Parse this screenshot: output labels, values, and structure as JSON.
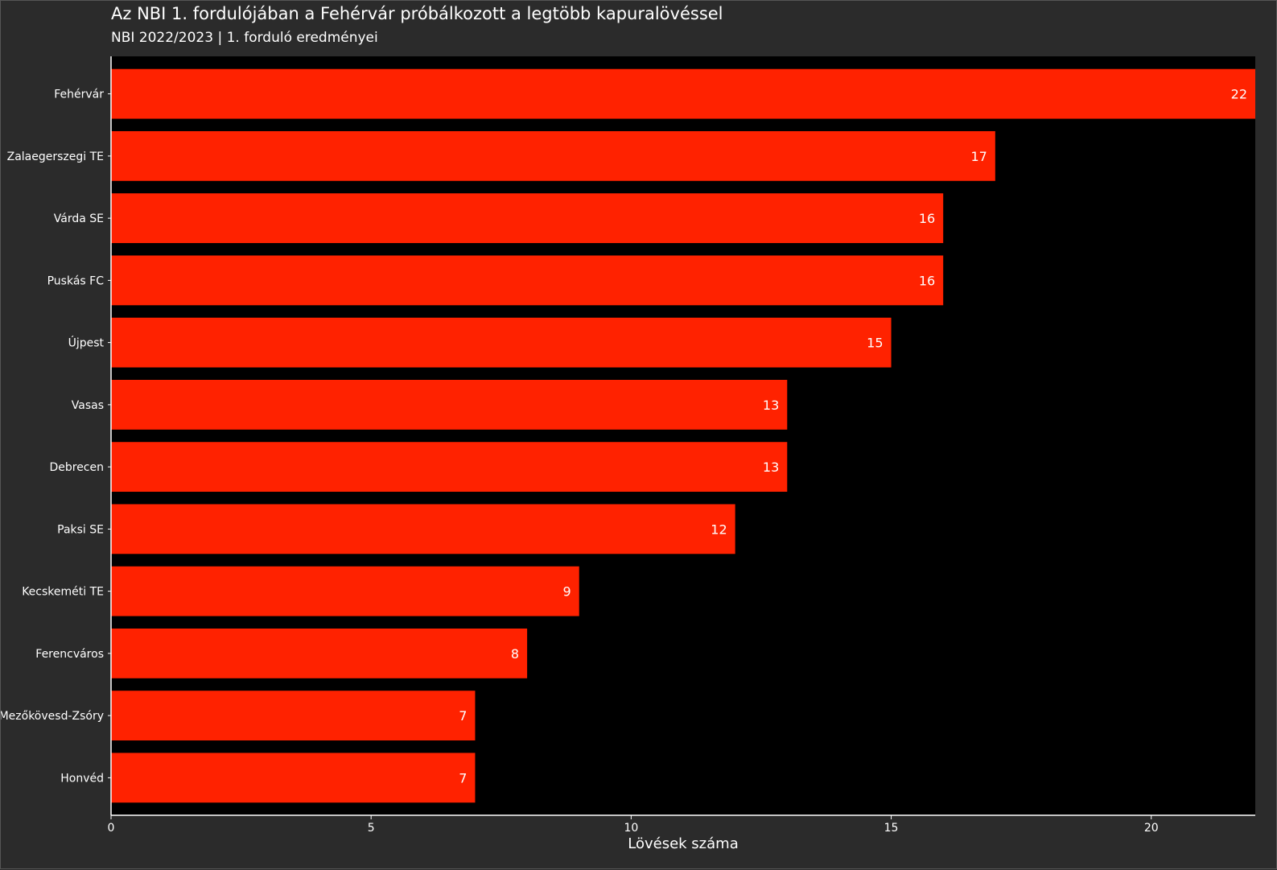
{
  "title": "Az NBI 1. fordulójában a Fehérvár próbálkozott a legtöbb kapuralövéssel",
  "subtitle": "NBI 2022/2023 | 1. forduló eredményei",
  "colors": {
    "bar": "#ff2200",
    "plot_background": "#000000",
    "page_background": "#2b2b2b",
    "text": "#ffffff"
  },
  "chart_data": {
    "type": "bar",
    "orientation": "horizontal",
    "title": "Az NBI 1. fordulójában a Fehérvár próbálkozott a legtöbb kapuralövéssel",
    "subtitle": "NBI 2022/2023 | 1. forduló eredményei",
    "xlabel": "Lövések száma",
    "ylabel": "",
    "categories": [
      "Fehérvár",
      "Zalaegerszegi TE",
      "Várda SE",
      "Puskás FC",
      "Újpest",
      "Vasas",
      "Debrecen",
      "Paksi SE",
      "Kecskeméti TE",
      "Ferencváros",
      "Mezőkövesd-Zsóry",
      "Honvéd"
    ],
    "values": [
      22,
      17,
      16,
      16,
      15,
      13,
      13,
      12,
      9,
      8,
      7,
      7
    ],
    "xlim": [
      0,
      22
    ],
    "xticks": [
      0,
      5,
      10,
      15,
      20
    ],
    "data_labels": true,
    "grid": false
  }
}
